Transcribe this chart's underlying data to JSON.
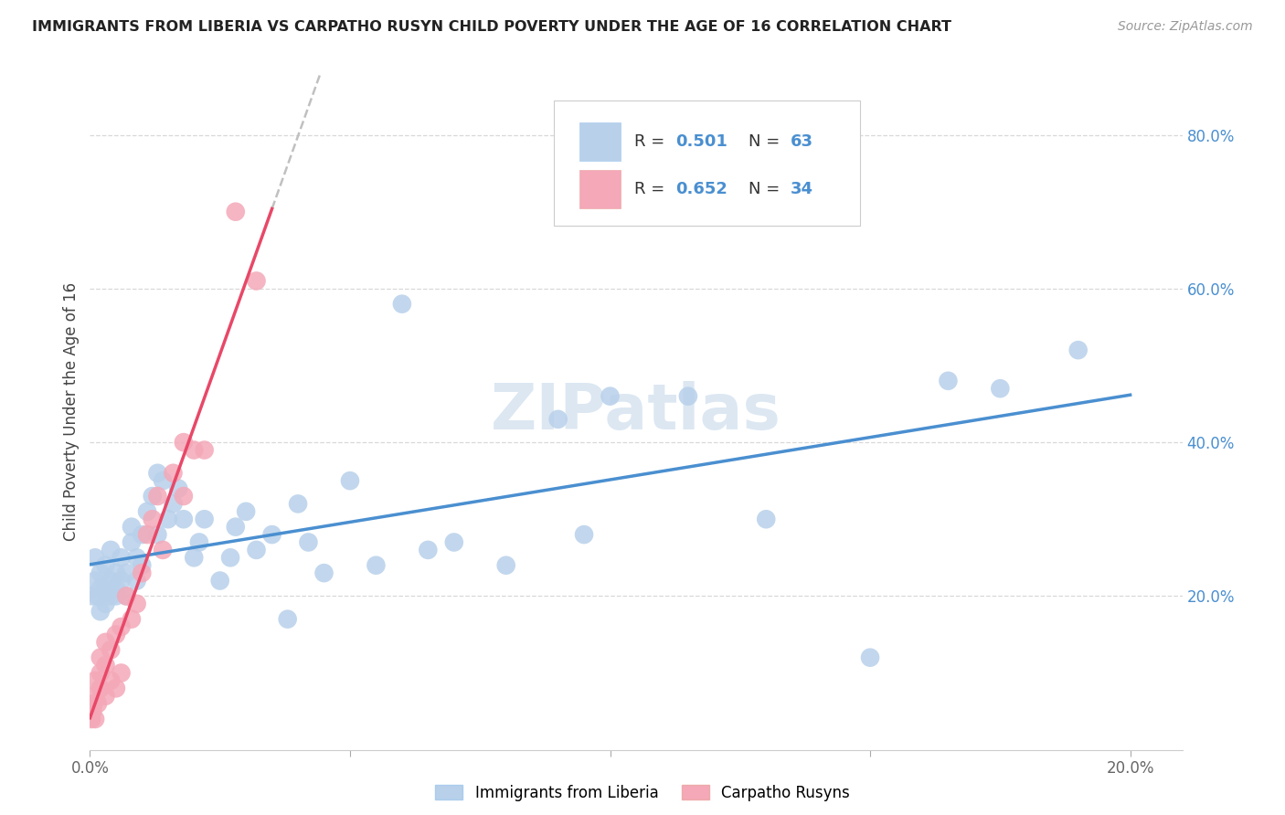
{
  "title": "IMMIGRANTS FROM LIBERIA VS CARPATHO RUSYN CHILD POVERTY UNDER THE AGE OF 16 CORRELATION CHART",
  "source": "Source: ZipAtlas.com",
  "ylabel": "Child Poverty Under the Age of 16",
  "xlim": [
    0.0,
    0.21
  ],
  "ylim": [
    0.0,
    0.88
  ],
  "xtick_vals": [
    0.0,
    0.05,
    0.1,
    0.15,
    0.2
  ],
  "xtick_labels": [
    "0.0%",
    "",
    "",
    "",
    "20.0%"
  ],
  "ytick_vals": [
    0.2,
    0.4,
    0.6,
    0.8
  ],
  "ytick_labels": [
    "20.0%",
    "40.0%",
    "60.0%",
    "80.0%"
  ],
  "legend_label1": "Immigrants from Liberia",
  "legend_label2": "Carpatho Rusyns",
  "R1": "0.501",
  "N1": "63",
  "R2": "0.652",
  "N2": "34",
  "color_blue": "#b8d0ea",
  "color_pink": "#f4a8b8",
  "line_blue": "#4a8fd0",
  "line_pink": "#e84868",
  "grid_color": "#d8d8d8",
  "watermark_color": "#c5d8ea",
  "blue_x": [
    0.0005,
    0.001,
    0.001,
    0.0015,
    0.002,
    0.002,
    0.002,
    0.003,
    0.003,
    0.003,
    0.004,
    0.004,
    0.004,
    0.005,
    0.005,
    0.005,
    0.006,
    0.006,
    0.007,
    0.007,
    0.008,
    0.008,
    0.009,
    0.009,
    0.01,
    0.01,
    0.011,
    0.012,
    0.013,
    0.013,
    0.014,
    0.015,
    0.016,
    0.017,
    0.018,
    0.02,
    0.021,
    0.022,
    0.025,
    0.027,
    0.028,
    0.03,
    0.032,
    0.035,
    0.038,
    0.04,
    0.042,
    0.045,
    0.05,
    0.055,
    0.06,
    0.065,
    0.07,
    0.08,
    0.09,
    0.095,
    0.1,
    0.115,
    0.13,
    0.15,
    0.165,
    0.175,
    0.19
  ],
  "blue_y": [
    0.2,
    0.22,
    0.25,
    0.2,
    0.18,
    0.21,
    0.23,
    0.19,
    0.21,
    0.24,
    0.2,
    0.22,
    0.26,
    0.21,
    0.23,
    0.2,
    0.22,
    0.25,
    0.2,
    0.23,
    0.27,
    0.29,
    0.22,
    0.25,
    0.24,
    0.28,
    0.31,
    0.33,
    0.36,
    0.28,
    0.35,
    0.3,
    0.32,
    0.34,
    0.3,
    0.25,
    0.27,
    0.3,
    0.22,
    0.25,
    0.29,
    0.31,
    0.26,
    0.28,
    0.17,
    0.32,
    0.27,
    0.23,
    0.35,
    0.24,
    0.58,
    0.26,
    0.27,
    0.24,
    0.43,
    0.28,
    0.46,
    0.46,
    0.3,
    0.12,
    0.48,
    0.47,
    0.52
  ],
  "pink_x": [
    0.0003,
    0.0005,
    0.0007,
    0.001,
    0.001,
    0.001,
    0.0015,
    0.002,
    0.002,
    0.002,
    0.003,
    0.003,
    0.003,
    0.004,
    0.004,
    0.005,
    0.005,
    0.006,
    0.006,
    0.007,
    0.008,
    0.009,
    0.01,
    0.011,
    0.012,
    0.013,
    0.014,
    0.016,
    0.018,
    0.02,
    0.022,
    0.025,
    0.03,
    0.035
  ],
  "pink_y": [
    0.04,
    0.05,
    0.06,
    0.04,
    0.07,
    0.09,
    0.06,
    0.08,
    0.1,
    0.12,
    0.07,
    0.11,
    0.14,
    0.09,
    0.13,
    0.08,
    0.15,
    0.1,
    0.16,
    0.2,
    0.17,
    0.19,
    0.23,
    0.28,
    0.3,
    0.33,
    0.26,
    0.36,
    0.33,
    0.39,
    0.36,
    0.42,
    0.38,
    0.61
  ]
}
